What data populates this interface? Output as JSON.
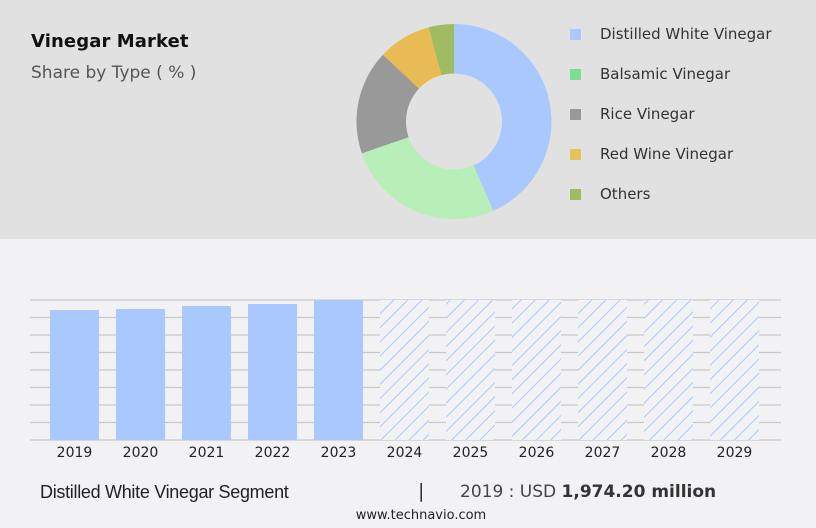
{
  "header": {
    "title": "Vinegar Market",
    "subtitle": "Share by Type ( % )"
  },
  "legend": {
    "items": [
      {
        "label": "Distilled White Vinegar",
        "color": "#a8c8fe"
      },
      {
        "label": "Balsamic Vinegar",
        "color": "#78e08f"
      },
      {
        "label": "Rice Vinegar",
        "color": "#999999"
      },
      {
        "label": "Red Wine Vinegar",
        "color": "#e5c35a"
      },
      {
        "label": "Others",
        "color": "#9fbc62"
      }
    ]
  },
  "footer": {
    "segment": "Distilled White Vinegar Segment",
    "separator": "|",
    "value_prefix": "2019 : USD ",
    "value_bold": "1,974.20 million",
    "url": "www.technavio.com"
  },
  "chart_data": [
    {
      "type": "pie",
      "title": "Vinegar Market",
      "subtitle": "Share by Type ( % )",
      "donut": true,
      "labels": [
        "Distilled White Vinegar",
        "Balsamic Vinegar",
        "Rice Vinegar",
        "Red Wine Vinegar",
        "Others"
      ],
      "values": [
        43.4,
        26.3,
        17.3,
        8.8,
        4.2
      ],
      "colors": [
        "#a8c8fe",
        "#b8eeb8",
        "#999999",
        "#e8bb55",
        "#9fbc62"
      ],
      "legend_position": "right"
    },
    {
      "type": "bar",
      "title": "Distilled White Vinegar Segment",
      "categories": [
        "2019",
        "2020",
        "2021",
        "2022",
        "2023",
        "2024",
        "2025",
        "2026",
        "2027",
        "2028",
        "2029"
      ],
      "values": [
        1974.2,
        1989,
        2035,
        2065,
        2126,
        null,
        null,
        null,
        null,
        null,
        null
      ],
      "forecast_categories": [
        "2024",
        "2025",
        "2026",
        "2027",
        "2028",
        "2029"
      ],
      "forecast_style": "hatched placeholder bars (full height)",
      "unit": "USD million",
      "xlabel": "",
      "ylabel": "",
      "ylim": [
        0,
        2126
      ],
      "grid": true,
      "annotation": "2019 : USD 1,974.20 million",
      "bar_color": "#a8c8fe"
    }
  ]
}
